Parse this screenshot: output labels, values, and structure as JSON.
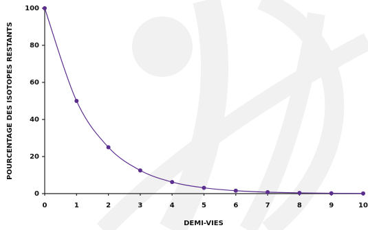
{
  "chart_data": {
    "type": "line",
    "x_label": "DEMI-VIES",
    "y_label": "POURCENTAGE DES ISOTOPES RESTANTS",
    "x": [
      0,
      1,
      2,
      3,
      4,
      5,
      6,
      7,
      8,
      9,
      10
    ],
    "series": [
      {
        "name": null,
        "color": "#5b2d8e",
        "values": [
          100,
          50,
          25,
          12.5,
          6.25,
          3.125,
          1.5625,
          0.78125,
          0.390625,
          0.1953125,
          0.09765625
        ]
      }
    ],
    "xlim": [
      0,
      10
    ],
    "xticks": [
      0,
      1,
      2,
      3,
      4,
      5,
      6,
      7,
      8,
      9,
      10
    ],
    "ylim": [
      0,
      100
    ],
    "yticks": [
      0,
      20,
      40,
      60,
      80,
      100
    ]
  }
}
